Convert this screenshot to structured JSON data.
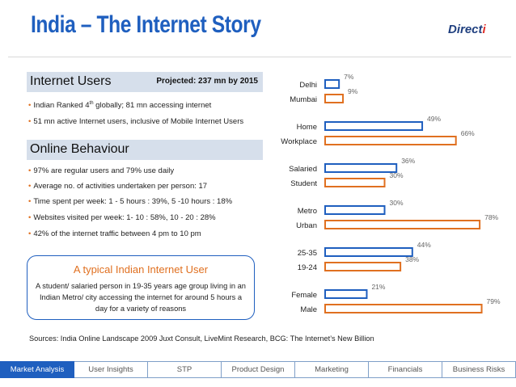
{
  "title": "India – The Internet Story",
  "logo": {
    "main": "Direct",
    "accent": "i"
  },
  "internet_users": {
    "heading": "Internet Users",
    "projected": "Projected: 237 mn by 2015",
    "bullets": [
      {
        "pre": "Indian Ranked 4",
        "sup": "th",
        "post": " globally; 81 mn accessing internet"
      },
      {
        "pre": "51 mn active Internet users, inclusive of Mobile Internet Users",
        "sup": "",
        "post": ""
      }
    ]
  },
  "online_behaviour": {
    "heading": "Online Behaviour",
    "bullets": [
      "97% are regular users and 79% use daily",
      "Average no. of activities undertaken per person: 17",
      "Time spent per week: 1 - 5 hours : 39%,  5 -10 hours : 18%",
      "Websites visited per week: 1- 10 : 58%, 10 - 20 : 28%",
      "42% of the internet traffic between 4 pm to 10 pm"
    ]
  },
  "callout": {
    "title": "A typical Indian Internet User",
    "text": "A student/ salaried person in 19-35 years age group living in an Indian Metro/ city accessing the internet for around 5 hours a day for a variety of reasons"
  },
  "sources": "Sources: India Online Landscape 2009 Juxt Consult, LiveMint Research, BCG: The Internet’s New Billion",
  "nav": {
    "tabs": [
      "Market Analysis",
      "User Insights",
      "STP",
      "Product Design",
      "Marketing",
      "Financials",
      "Business Risks"
    ],
    "active": 0
  },
  "colors": {
    "blue": "#1f5fbf",
    "orange": "#e07020",
    "header_bg": "#d6dfeb"
  },
  "chart_data": {
    "type": "bar",
    "orientation": "horizontal",
    "groups": [
      {
        "bars": [
          {
            "label": "Delhi",
            "value": 7,
            "display": "7%",
            "color": "blue"
          },
          {
            "label": "Mumbai",
            "value": 9,
            "display": "9%",
            "color": "orange"
          }
        ]
      },
      {
        "bars": [
          {
            "label": "Home",
            "value": 49,
            "display": "49%",
            "color": "blue"
          },
          {
            "label": "Workplace",
            "value": 66,
            "display": "66%",
            "color": "orange"
          }
        ]
      },
      {
        "bars": [
          {
            "label": "Salaried",
            "value": 36,
            "display": "36%",
            "color": "blue"
          },
          {
            "label": "Student",
            "value": 30,
            "display": "30%",
            "color": "orange"
          }
        ]
      },
      {
        "bars": [
          {
            "label": "Metro",
            "value": 30,
            "display": "30%",
            "color": "blue"
          },
          {
            "label": "Urban",
            "value": 78,
            "display": "78%",
            "color": "orange"
          }
        ]
      },
      {
        "bars": [
          {
            "label": "25-35",
            "value": 44,
            "display": "44%",
            "color": "blue"
          },
          {
            "label": "19-24",
            "value": 38,
            "display": "38%",
            "color": "orange"
          }
        ]
      },
      {
        "bars": [
          {
            "label": "Female",
            "value": 21,
            "display": "21%",
            "color": "blue"
          },
          {
            "label": "Male",
            "value": 79,
            "display": "79%",
            "color": "orange"
          }
        ]
      }
    ],
    "xlim": [
      0,
      100
    ]
  }
}
